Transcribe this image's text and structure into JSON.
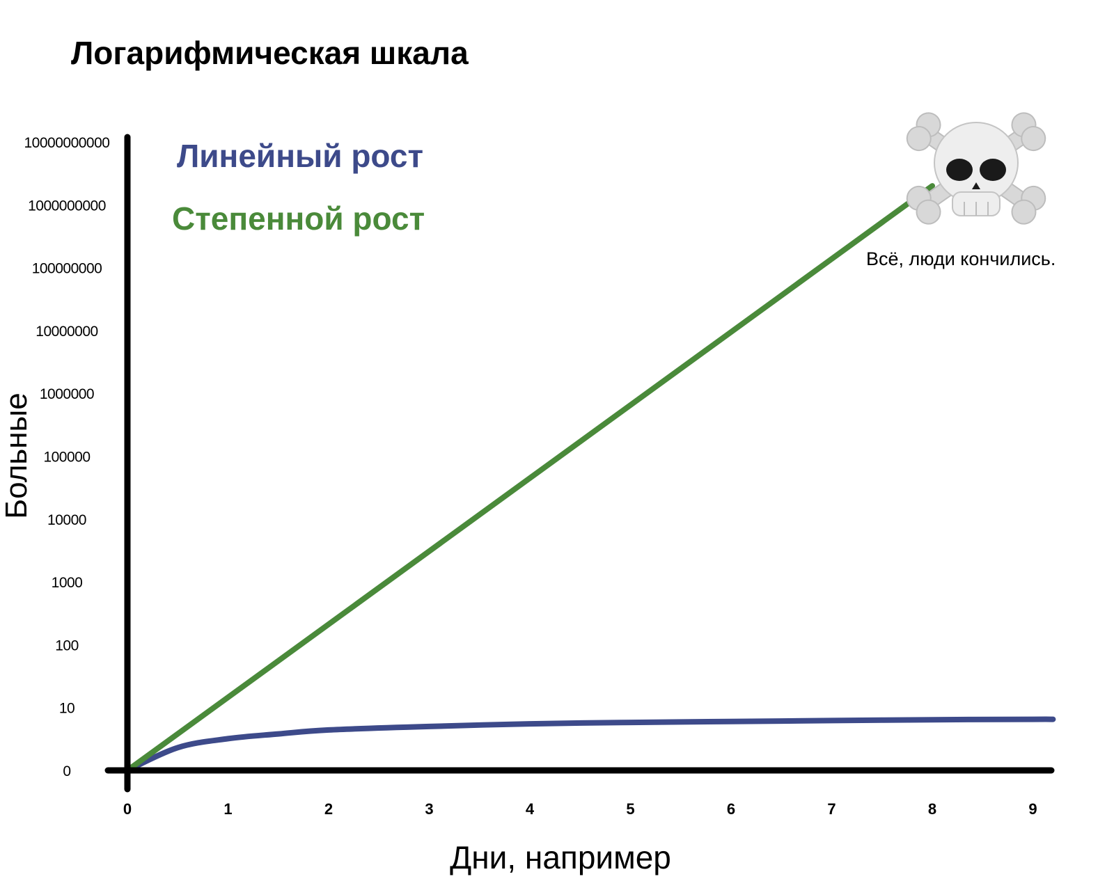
{
  "chart_data": {
    "type": "line",
    "title": "Логарифмическая шкала",
    "xlabel": "Дни, например",
    "ylabel": "Больные",
    "y_scale": "log",
    "x_ticks": [
      "0",
      "1",
      "2",
      "3",
      "4",
      "5",
      "6",
      "7",
      "8",
      "9"
    ],
    "y_ticks": [
      "0",
      "10",
      "100",
      "1000",
      "10000",
      "100000",
      "1000000",
      "10000000",
      "100000000",
      "1000000000",
      "10000000000"
    ],
    "xlim": [
      0,
      9.2
    ],
    "grid": false,
    "legend_placement": "top-left",
    "series": [
      {
        "name": "Линейный рост",
        "color": "#3d4a8a",
        "x": [
          0,
          0.5,
          1,
          1.5,
          2,
          3,
          4,
          5,
          6,
          7,
          8,
          9,
          9.2
        ],
        "y": [
          1,
          2.3,
          3.2,
          3.8,
          4.4,
          5,
          5.5,
          5.8,
          6,
          6.2,
          6.4,
          6.5,
          6.5
        ]
      },
      {
        "name": "Степенной рост",
        "color": "#4a8a3a",
        "x": [
          0,
          8
        ],
        "y": [
          1,
          2000000000
        ]
      }
    ],
    "annotations": [
      {
        "text": "Всё, люди кончились.",
        "icon": "skull-crossbones-icon",
        "x": 8,
        "y": 2000000000
      }
    ]
  }
}
